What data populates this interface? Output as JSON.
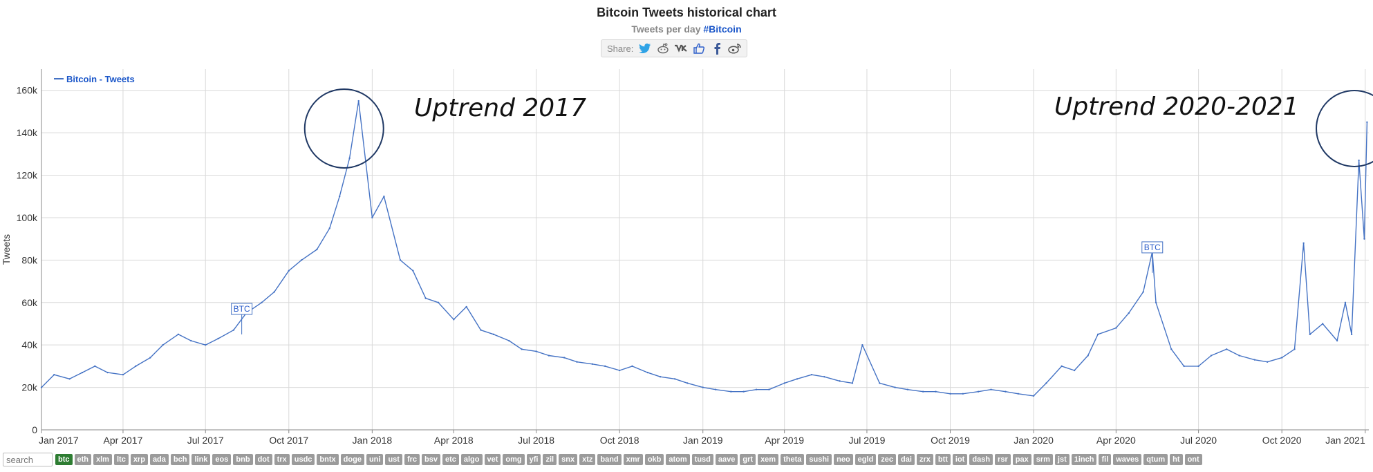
{
  "header": {
    "title": "Bitcoin Tweets historical chart",
    "subtitle_prefix": "Tweets per day",
    "subtitle_tag": "#Bitcoin",
    "share_label": "Share:",
    "share_icons": [
      "twitter-icon",
      "reddit-icon",
      "vk-icon",
      "like-icon",
      "facebook-icon",
      "weibo-icon"
    ]
  },
  "colors": {
    "series": "#4472c4",
    "annotation_circle": "#1f3864",
    "grid": "#d9d9d9",
    "active_coin": "#2e7d32",
    "coin": "#9b9b9b"
  },
  "chart_data": {
    "type": "line",
    "title": "Bitcoin Tweets historical chart",
    "subtitle": "Tweets per day #Bitcoin",
    "ylabel": "Tweets",
    "xlabel": "",
    "ylim": [
      0,
      170000
    ],
    "yticks": [
      0,
      20000,
      40000,
      60000,
      80000,
      100000,
      120000,
      140000,
      160000
    ],
    "ytick_labels": [
      "0",
      "20k",
      "40k",
      "60k",
      "80k",
      "100k",
      "120k",
      "140k",
      "160k"
    ],
    "xlim": [
      "2017-01-01",
      "2021-01-05"
    ],
    "xticks": [
      "2017-01-01",
      "2017-04-01",
      "2017-07-01",
      "2017-10-01",
      "2018-01-01",
      "2018-04-01",
      "2018-07-01",
      "2018-10-01",
      "2019-01-01",
      "2019-04-01",
      "2019-07-01",
      "2019-10-01",
      "2020-01-01",
      "2020-04-01",
      "2020-07-01",
      "2020-10-01",
      "2021-01-01"
    ],
    "xtick_labels": [
      "Jan 2017",
      "Apr 2017",
      "Jul 2017",
      "Oct 2017",
      "Jan 2018",
      "Apr 2018",
      "Jul 2018",
      "Oct 2018",
      "Jan 2019",
      "Apr 2019",
      "Jul 2019",
      "Oct 2019",
      "Jan 2020",
      "Apr 2020",
      "Jul 2020",
      "Oct 2020",
      "Jan 2021"
    ],
    "grid": true,
    "legend": {
      "position": "top-left",
      "label": "Bitcoin - Tweets"
    },
    "series": [
      {
        "name": "Bitcoin - Tweets",
        "x": [
          "2017-01-01",
          "2017-01-15",
          "2017-02-01",
          "2017-02-15",
          "2017-03-01",
          "2017-03-15",
          "2017-04-01",
          "2017-04-15",
          "2017-05-01",
          "2017-05-15",
          "2017-06-01",
          "2017-06-15",
          "2017-07-01",
          "2017-07-15",
          "2017-08-01",
          "2017-08-15",
          "2017-09-01",
          "2017-09-15",
          "2017-10-01",
          "2017-10-15",
          "2017-11-01",
          "2017-11-15",
          "2017-11-26",
          "2017-12-07",
          "2017-12-17",
          "2018-01-01",
          "2018-01-14",
          "2018-02-01",
          "2018-02-15",
          "2018-03-01",
          "2018-03-15",
          "2018-04-01",
          "2018-04-15",
          "2018-05-01",
          "2018-05-15",
          "2018-06-01",
          "2018-06-15",
          "2018-07-01",
          "2018-07-15",
          "2018-08-01",
          "2018-08-15",
          "2018-09-01",
          "2018-09-15",
          "2018-10-01",
          "2018-10-15",
          "2018-11-01",
          "2018-11-15",
          "2018-12-01",
          "2018-12-15",
          "2019-01-01",
          "2019-01-15",
          "2019-02-01",
          "2019-02-15",
          "2019-03-01",
          "2019-03-15",
          "2019-04-01",
          "2019-04-15",
          "2019-05-01",
          "2019-05-15",
          "2019-06-01",
          "2019-06-15",
          "2019-06-26",
          "2019-07-15",
          "2019-08-01",
          "2019-08-15",
          "2019-09-01",
          "2019-09-15",
          "2019-10-01",
          "2019-10-15",
          "2019-11-01",
          "2019-11-15",
          "2019-12-01",
          "2019-12-15",
          "2020-01-01",
          "2020-01-15",
          "2020-02-01",
          "2020-02-15",
          "2020-03-01",
          "2020-03-12",
          "2020-04-01",
          "2020-04-15",
          "2020-05-01",
          "2020-05-11",
          "2020-05-15",
          "2020-06-01",
          "2020-06-15",
          "2020-07-01",
          "2020-07-15",
          "2020-08-01",
          "2020-08-15",
          "2020-09-01",
          "2020-09-15",
          "2020-10-01",
          "2020-10-15",
          "2020-10-25",
          "2020-11-01",
          "2020-11-15",
          "2020-12-01",
          "2020-12-10",
          "2020-12-17",
          "2020-12-25",
          "2020-12-31",
          "2021-01-03"
        ],
        "y": [
          20000,
          26000,
          24000,
          27000,
          30000,
          27000,
          26000,
          30000,
          34000,
          40000,
          45000,
          42000,
          40000,
          43000,
          47000,
          55000,
          60000,
          65000,
          75000,
          80000,
          85000,
          95000,
          110000,
          128000,
          155000,
          100000,
          110000,
          80000,
          75000,
          62000,
          60000,
          52000,
          58000,
          47000,
          45000,
          42000,
          38000,
          37000,
          35000,
          34000,
          32000,
          31000,
          30000,
          28000,
          30000,
          27000,
          25000,
          24000,
          22000,
          20000,
          19000,
          18000,
          18000,
          19000,
          19000,
          22000,
          24000,
          26000,
          25000,
          23000,
          22000,
          40000,
          22000,
          20000,
          19000,
          18000,
          18000,
          17000,
          17000,
          18000,
          19000,
          18000,
          17000,
          16000,
          22000,
          30000,
          28000,
          35000,
          45000,
          48000,
          55000,
          65000,
          84000,
          60000,
          38000,
          30000,
          30000,
          35000,
          38000,
          35000,
          33000,
          32000,
          34000,
          38000,
          88000,
          45000,
          50000,
          42000,
          60000,
          45000,
          127000,
          90000,
          145000
        ]
      }
    ],
    "annotations": [
      {
        "text": "Uptrend 2017",
        "x": "2017-12-01",
        "y": 143000
      },
      {
        "text": "Uptrend 2020-2021",
        "x": "2020-12-20",
        "y": 143000
      }
    ],
    "flags": [
      {
        "text": "BTC",
        "x": "2017-08-10",
        "y": 57000
      },
      {
        "text": "BTC",
        "x": "2020-05-11",
        "y": 86000
      }
    ]
  },
  "bottom": {
    "search_placeholder": "search",
    "coins": [
      "btc",
      "eth",
      "xlm",
      "ltc",
      "xrp",
      "ada",
      "bch",
      "link",
      "eos",
      "bnb",
      "dot",
      "trx",
      "usdc",
      "bntx",
      "doge",
      "uni",
      "ust",
      "frc",
      "bsv",
      "etc",
      "algo",
      "vet",
      "omg",
      "yfi",
      "zil",
      "snx",
      "xtz",
      "band",
      "xmr",
      "okb",
      "atom",
      "tusd",
      "aave",
      "grt",
      "xem",
      "theta",
      "sushi",
      "neo",
      "egld",
      "zec",
      "dai",
      "zrx",
      "btt",
      "iot",
      "dash",
      "rsr",
      "pax",
      "srm",
      "jst",
      "1inch",
      "fil",
      "waves",
      "qtum",
      "ht",
      "ont"
    ],
    "active_coin": "btc"
  }
}
